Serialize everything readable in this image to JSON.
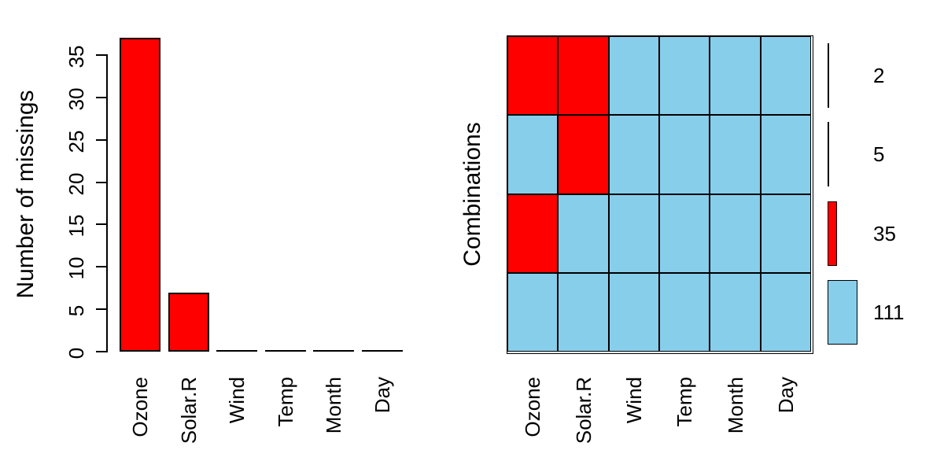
{
  "colors": {
    "missing_red": "#FF0000",
    "observed_blue": "#87CEEB",
    "axis_black": "#000000",
    "background": "#FFFFFF"
  },
  "chart_data": [
    {
      "type": "bar",
      "title": "",
      "xlabel": "",
      "ylabel": "Number of missings",
      "categories": [
        "Ozone",
        "Solar.R",
        "Wind",
        "Temp",
        "Month",
        "Day"
      ],
      "values": [
        37,
        7,
        0,
        0,
        0,
        0
      ],
      "yticks": [
        0,
        5,
        10,
        15,
        20,
        25,
        30,
        35
      ],
      "ylim": [
        0,
        37
      ],
      "bar_color": "#FF0000",
      "grid": false,
      "x_tick_label_rotation": 90,
      "y_tick_label_rotation": 90
    },
    {
      "type": "heatmap",
      "title": "",
      "xlabel": "",
      "ylabel": "Combinations",
      "categories": [
        "Ozone",
        "Solar.R",
        "Wind",
        "Temp",
        "Month",
        "Day"
      ],
      "rows": [
        {
          "pattern": [
            1,
            1,
            0,
            0,
            0,
            0
          ],
          "count": 2
        },
        {
          "pattern": [
            0,
            1,
            0,
            0,
            0,
            0
          ],
          "count": 5
        },
        {
          "pattern": [
            1,
            0,
            0,
            0,
            0,
            0
          ],
          "count": 35
        },
        {
          "pattern": [
            0,
            0,
            0,
            0,
            0,
            0
          ],
          "count": 111
        }
      ],
      "legend_labels": [
        "2",
        "5",
        "35",
        "111"
      ],
      "legend_position": "right",
      "missing_color": "#FF0000",
      "observed_color": "#87CEEB",
      "x_tick_label_rotation": 90
    }
  ]
}
